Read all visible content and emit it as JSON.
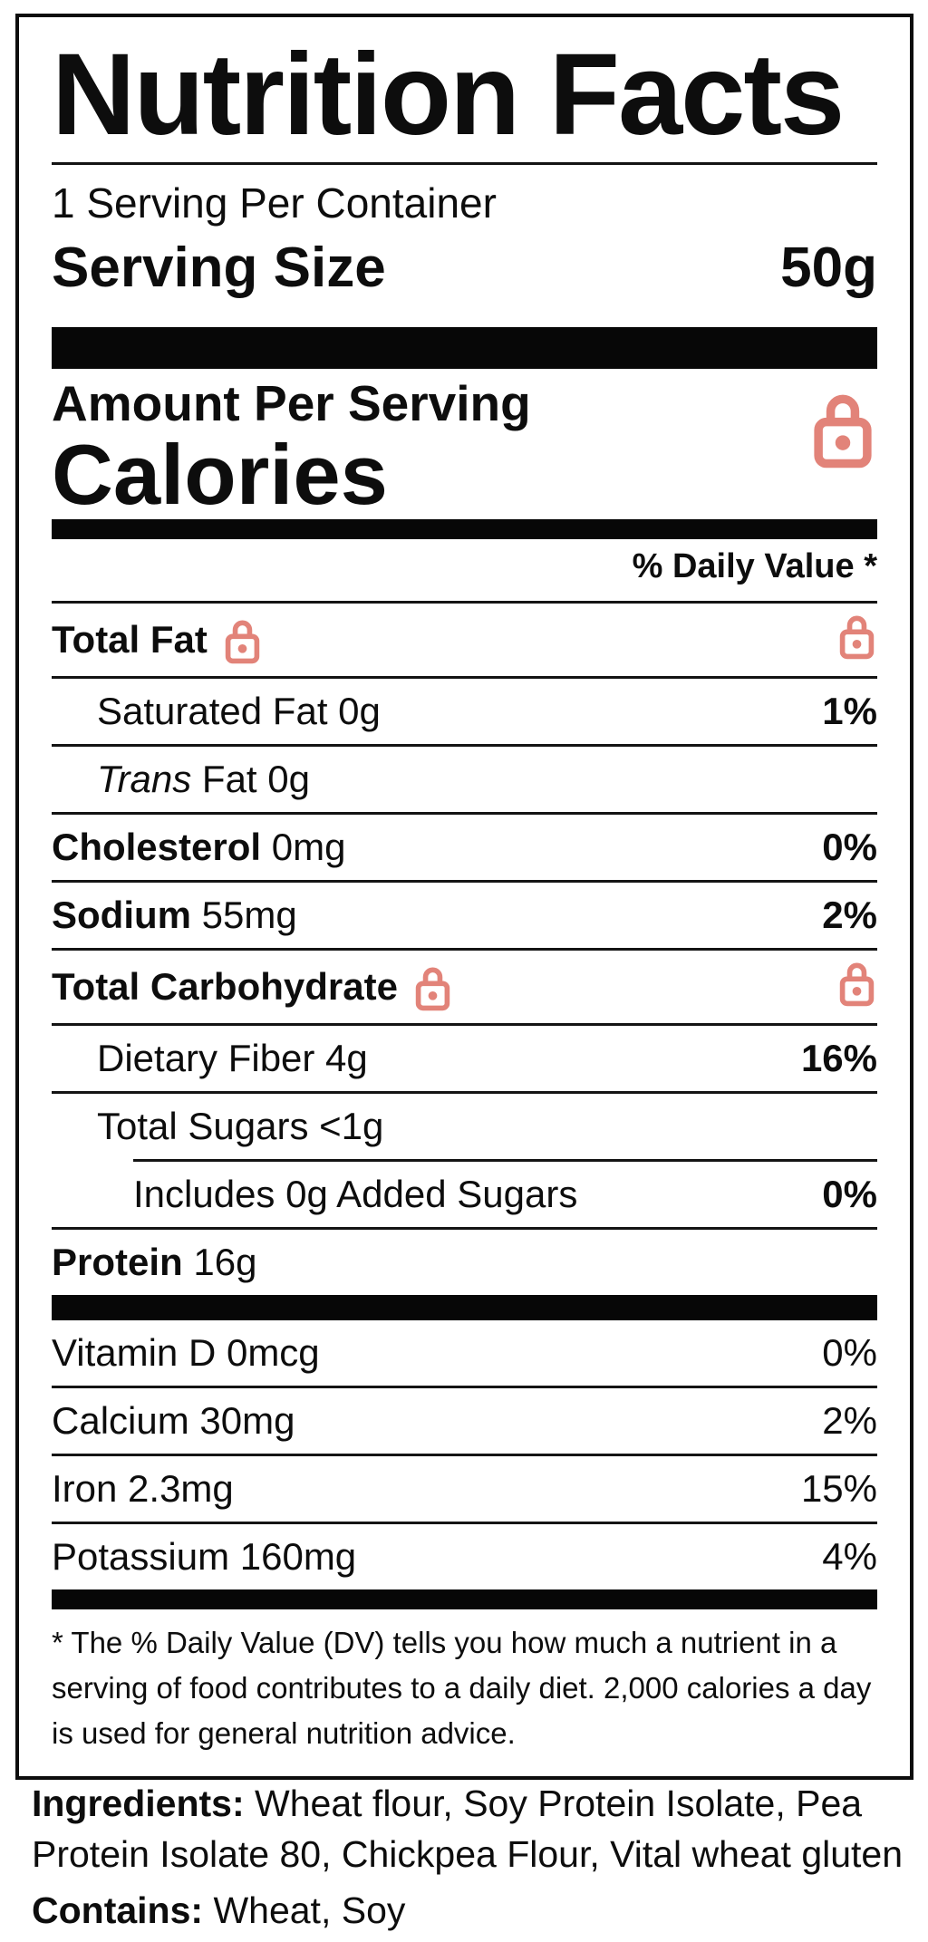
{
  "label": {
    "title": "Nutrition Facts",
    "servings_per_container": "1 Serving Per Container",
    "serving_size_label": "Serving Size",
    "serving_size_value": "50g",
    "amount_per_serving": "Amount Per Serving",
    "calories_label": "Calories",
    "daily_value_header": "% Daily Value *",
    "rows": [
      {
        "bold": "Total Fat",
        "label_lock": true,
        "value_lock": true
      },
      {
        "regular": "Saturated Fat 0g",
        "indent": 1,
        "value": "1%",
        "value_bold": true
      },
      {
        "italic": "Trans",
        "regular": " Fat 0g",
        "indent": 1
      },
      {
        "bold": "Cholesterol",
        "regular": " 0mg",
        "value": "0%",
        "value_bold": true
      },
      {
        "bold": "Sodium",
        "regular": " 55mg",
        "value": "2%",
        "value_bold": true
      },
      {
        "bold": "Total Carbohydrate",
        "label_lock": true,
        "value_lock": true
      },
      {
        "regular": "Dietary Fiber 4g",
        "indent": 1,
        "value": "16%",
        "value_bold": true
      },
      {
        "regular": "Total Sugars <1g",
        "indent": 1
      },
      {
        "regular": "Includes 0g Added Sugars",
        "indent": 2,
        "value": "0%",
        "value_bold": true,
        "rule_above": "indent2"
      },
      {
        "bold": "Protein",
        "regular": " 16g"
      }
    ],
    "vitamin_rows": [
      {
        "regular": "Vitamin D 0mcg",
        "value": "0%"
      },
      {
        "regular": "Calcium 30mg",
        "value": "2%"
      },
      {
        "regular": "Iron 2.3mg",
        "value": "15%"
      },
      {
        "regular": "Potassium 160mg",
        "value": "4%"
      }
    ],
    "footnote": "* The % Daily Value (DV) tells you how much a nutrient in a serving of food contributes to a daily diet. 2,000 calories a day is used for general nutrition advice."
  },
  "ingredients": {
    "label": "Ingredients:",
    "text": "Wheat flour, Soy Protein Isolate, Pea Protein Isolate 80, Chickpea Flour, Vital wheat gluten"
  },
  "contains": {
    "label": "Contains:",
    "text": "Wheat, Soy"
  },
  "icons": {
    "locked_value": "lock-icon"
  },
  "colors": {
    "lock": "#e28379",
    "text": "#0d0d0d"
  }
}
